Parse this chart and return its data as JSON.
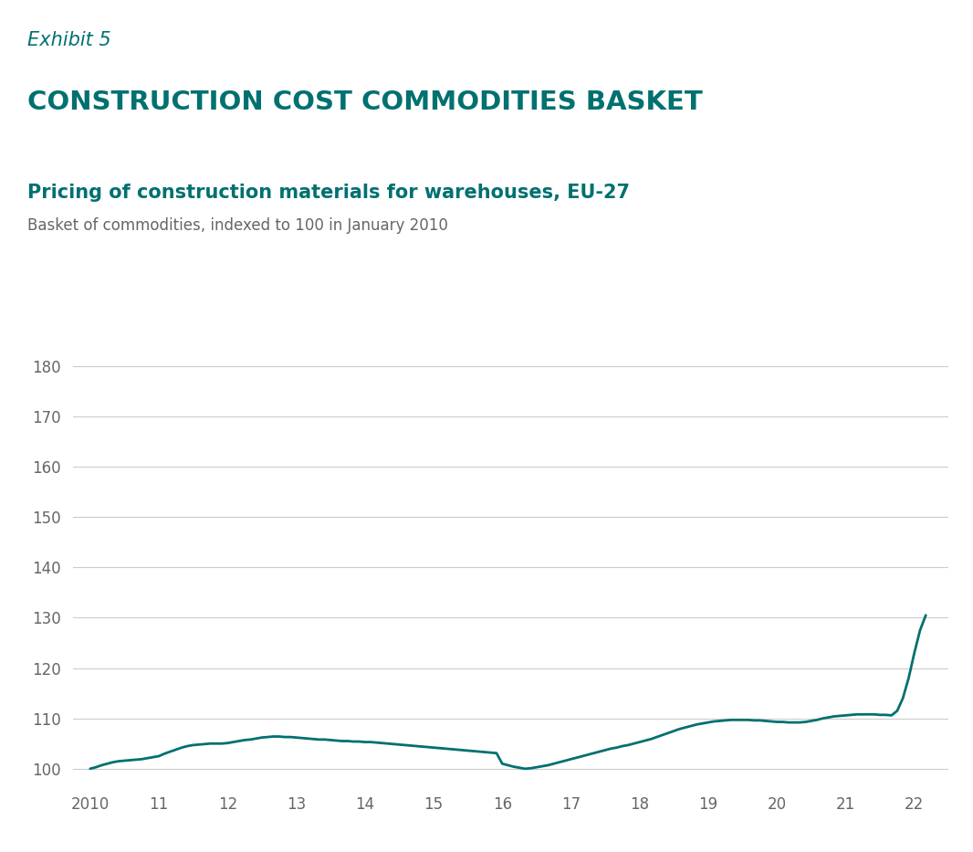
{
  "exhibit_label": "Exhibit 5",
  "title": "CONSTRUCTION COST COMMODITIES BASKET",
  "subtitle": "Pricing of construction materials for warehouses, EU-27",
  "subtitle2": "Basket of commodities, indexed to 100 in January 2010",
  "header_bg_color": "#dcdcdc",
  "teal_color": "#007070",
  "title_color": "#007070",
  "axis_label_color": "#666666",
  "grid_color": "#cccccc",
  "line_color": "#007070",
  "background_color": "#ffffff",
  "yticks": [
    100,
    110,
    120,
    130,
    140,
    150,
    160,
    170,
    180
  ],
  "xtick_labels": [
    "2010",
    "11",
    "12",
    "13",
    "14",
    "15",
    "16",
    "17",
    "18",
    "19",
    "20",
    "21",
    "22"
  ],
  "x_values": [
    2010.0,
    2010.083,
    2010.167,
    2010.25,
    2010.333,
    2010.417,
    2010.5,
    2010.583,
    2010.667,
    2010.75,
    2010.833,
    2010.917,
    2011.0,
    2011.083,
    2011.167,
    2011.25,
    2011.333,
    2011.417,
    2011.5,
    2011.583,
    2011.667,
    2011.75,
    2011.833,
    2011.917,
    2012.0,
    2012.083,
    2012.167,
    2012.25,
    2012.333,
    2012.417,
    2012.5,
    2012.583,
    2012.667,
    2012.75,
    2012.833,
    2012.917,
    2013.0,
    2013.083,
    2013.167,
    2013.25,
    2013.333,
    2013.417,
    2013.5,
    2013.583,
    2013.667,
    2013.75,
    2013.833,
    2013.917,
    2014.0,
    2014.083,
    2014.167,
    2014.25,
    2014.333,
    2014.417,
    2014.5,
    2014.583,
    2014.667,
    2014.75,
    2014.833,
    2014.917,
    2015.0,
    2015.083,
    2015.167,
    2015.25,
    2015.333,
    2015.417,
    2015.5,
    2015.583,
    2015.667,
    2015.75,
    2015.833,
    2015.917,
    2016.0,
    2016.083,
    2016.167,
    2016.25,
    2016.333,
    2016.417,
    2016.5,
    2016.583,
    2016.667,
    2016.75,
    2016.833,
    2016.917,
    2017.0,
    2017.083,
    2017.167,
    2017.25,
    2017.333,
    2017.417,
    2017.5,
    2017.583,
    2017.667,
    2017.75,
    2017.833,
    2017.917,
    2018.0,
    2018.083,
    2018.167,
    2018.25,
    2018.333,
    2018.417,
    2018.5,
    2018.583,
    2018.667,
    2018.75,
    2018.833,
    2018.917,
    2019.0,
    2019.083,
    2019.167,
    2019.25,
    2019.333,
    2019.417,
    2019.5,
    2019.583,
    2019.667,
    2019.75,
    2019.833,
    2019.917,
    2020.0,
    2020.083,
    2020.167,
    2020.25,
    2020.333,
    2020.417,
    2020.5,
    2020.583,
    2020.667,
    2020.75,
    2020.833,
    2020.917,
    2021.0,
    2021.083,
    2021.167,
    2021.25,
    2021.333,
    2021.417,
    2021.5,
    2021.583,
    2021.667,
    2021.75,
    2021.833,
    2021.917,
    2022.0,
    2022.083,
    2022.167
  ],
  "y_values": [
    100.0,
    100.3,
    100.7,
    101.0,
    101.3,
    101.5,
    101.6,
    101.7,
    101.8,
    101.9,
    102.1,
    102.3,
    102.5,
    103.0,
    103.4,
    103.8,
    104.2,
    104.5,
    104.7,
    104.8,
    104.9,
    105.0,
    105.0,
    105.0,
    105.1,
    105.3,
    105.5,
    105.7,
    105.8,
    106.0,
    106.2,
    106.3,
    106.4,
    106.4,
    106.3,
    106.3,
    106.2,
    106.1,
    106.0,
    105.9,
    105.8,
    105.8,
    105.7,
    105.6,
    105.5,
    105.5,
    105.4,
    105.4,
    105.3,
    105.3,
    105.2,
    105.1,
    105.0,
    104.9,
    104.8,
    104.7,
    104.6,
    104.5,
    104.4,
    104.3,
    104.2,
    104.1,
    104.0,
    103.9,
    103.8,
    103.7,
    103.6,
    103.5,
    103.4,
    103.3,
    103.2,
    103.1,
    101.0,
    100.7,
    100.4,
    100.2,
    100.0,
    100.1,
    100.3,
    100.5,
    100.7,
    101.0,
    101.3,
    101.6,
    101.9,
    102.2,
    102.5,
    102.8,
    103.1,
    103.4,
    103.7,
    104.0,
    104.2,
    104.5,
    104.7,
    105.0,
    105.3,
    105.6,
    105.9,
    106.3,
    106.7,
    107.1,
    107.5,
    107.9,
    108.2,
    108.5,
    108.8,
    109.0,
    109.2,
    109.4,
    109.5,
    109.6,
    109.7,
    109.7,
    109.7,
    109.7,
    109.6,
    109.6,
    109.5,
    109.4,
    109.3,
    109.3,
    109.2,
    109.2,
    109.2,
    109.3,
    109.5,
    109.7,
    110.0,
    110.2,
    110.4,
    110.5,
    110.6,
    110.7,
    110.8,
    110.8,
    110.8,
    110.8,
    110.7,
    110.7,
    110.6,
    111.5,
    114.0,
    118.0,
    123.0,
    127.5,
    130.5
  ]
}
